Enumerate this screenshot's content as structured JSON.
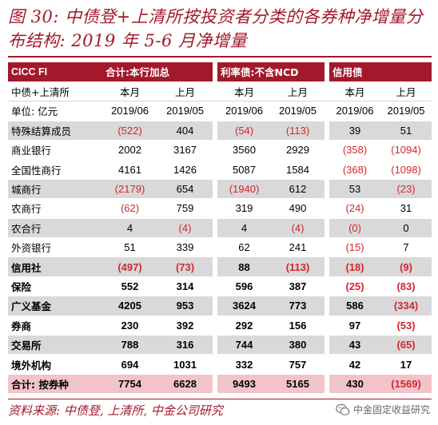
{
  "title": "图 30: 中债登+上清所按投资者分类的各券种净增量分布结构: 2019 年 5-6 月净增量",
  "header": {
    "brand": "CICC FI",
    "groups": [
      "合计:本行加总",
      "利率债:不含NCD",
      "信用债"
    ]
  },
  "subheader": {
    "label": "中债+上清所",
    "cols": [
      "本月",
      "上月",
      "本月",
      "上月",
      "本月",
      "上月"
    ]
  },
  "units": {
    "label": "单位: 亿元",
    "cols": [
      "2019/06",
      "2019/05",
      "2019/06",
      "2019/05",
      "2019/06",
      "2019/05"
    ]
  },
  "rows": [
    {
      "label": "特殊结算成员",
      "values": [
        "(522)",
        "404",
        "(54)",
        "(113)",
        "39",
        "51"
      ],
      "style": "shade",
      "bold": false
    },
    {
      "label": "商业银行",
      "values": [
        "2002",
        "3167",
        "3560",
        "2929",
        "(358)",
        "(1094)"
      ],
      "style": "white",
      "bold": false
    },
    {
      "label": "全国性商行",
      "values": [
        "4161",
        "1426",
        "5087",
        "1584",
        "(368)",
        "(1098)"
      ],
      "style": "white",
      "bold": false
    },
    {
      "label": "城商行",
      "values": [
        "(2179)",
        "654",
        "(1940)",
        "612",
        "53",
        "(23)"
      ],
      "style": "shade",
      "bold": false
    },
    {
      "label": "农商行",
      "values": [
        "(62)",
        "759",
        "319",
        "490",
        "(24)",
        "31"
      ],
      "style": "white",
      "bold": false
    },
    {
      "label": "农合行",
      "values": [
        "4",
        "(4)",
        "4",
        "(4)",
        "(0)",
        "0"
      ],
      "style": "shade",
      "bold": false
    },
    {
      "label": "外资银行",
      "values": [
        "51",
        "339",
        "62",
        "241",
        "(15)",
        "7"
      ],
      "style": "white",
      "bold": false
    },
    {
      "label": "信用社",
      "values": [
        "(497)",
        "(73)",
        "88",
        "(113)",
        "(18)",
        "(9)"
      ],
      "style": "shade",
      "bold": true
    },
    {
      "label": "保险",
      "values": [
        "552",
        "314",
        "596",
        "387",
        "(25)",
        "(83)"
      ],
      "style": "white",
      "bold": true
    },
    {
      "label": "广义基金",
      "values": [
        "4205",
        "953",
        "3624",
        "773",
        "586",
        "(334)"
      ],
      "style": "shade",
      "bold": true
    },
    {
      "label": "券商",
      "values": [
        "230",
        "392",
        "292",
        "156",
        "97",
        "(53)"
      ],
      "style": "white",
      "bold": true
    },
    {
      "label": "交易所",
      "values": [
        "788",
        "316",
        "744",
        "380",
        "43",
        "(65)"
      ],
      "style": "shade",
      "bold": true
    },
    {
      "label": "境外机构",
      "values": [
        "694",
        "1031",
        "332",
        "757",
        "42",
        "17"
      ],
      "style": "white",
      "bold": true
    },
    {
      "label": "合计: 按券种",
      "values": [
        "7754",
        "6628",
        "9493",
        "5165",
        "430",
        "(1569)"
      ],
      "style": "total",
      "bold": true
    }
  ],
  "footer": {
    "source": "资料来源: 中债登, 上清所, 中金公司研究",
    "watermark": "中金固定收益研究",
    "watermark_icon": "wechat-icon"
  },
  "colors": {
    "accent": "#a3182a",
    "negative": "#d4262e",
    "shade": "#d9d9d9",
    "total": "#f2c4ca"
  }
}
